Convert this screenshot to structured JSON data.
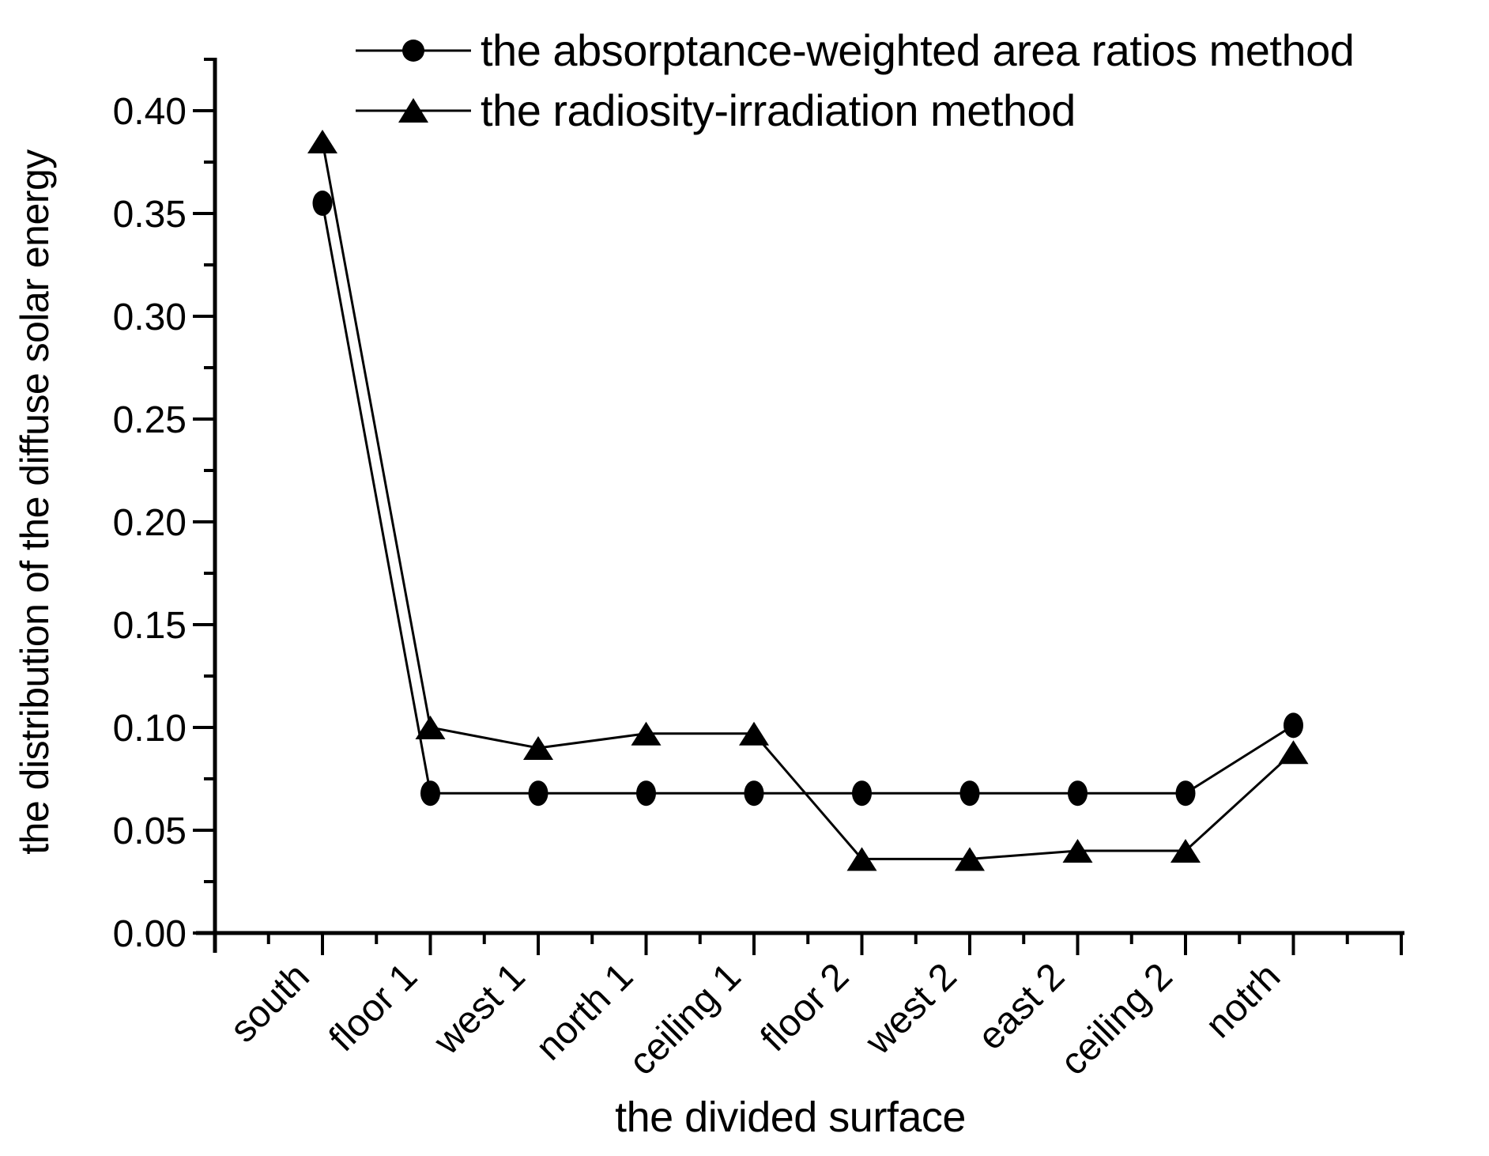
{
  "page": {
    "background": "#ffffff"
  },
  "legend": {
    "items": [
      {
        "marker": "circle",
        "label": "the absorptance-weighted area ratios method"
      },
      {
        "marker": "triangle",
        "label": "the radiosity-irradiation method"
      }
    ]
  },
  "chart_data": {
    "type": "line",
    "title": "",
    "xlabel": "the divided surface",
    "ylabel": "the distribution of the diffuse solar energy",
    "categories": [
      "south",
      "floor 1",
      "west 1",
      "north 1",
      "ceiling 1",
      "floor 2",
      "west 2",
      "east 2",
      "ceiling 2",
      "notrh"
    ],
    "series": [
      {
        "name": "the absorptance-weighted area ratios method",
        "marker": "circle",
        "values": [
          0.355,
          0.068,
          0.068,
          0.068,
          0.068,
          0.068,
          0.068,
          0.068,
          0.068,
          0.101
        ]
      },
      {
        "name": "the radiosity-irradiation method",
        "marker": "triangle",
        "values": [
          0.385,
          0.1,
          0.09,
          0.097,
          0.097,
          0.036,
          0.036,
          0.04,
          0.04,
          0.088
        ]
      }
    ],
    "y_axis": {
      "min": 0.0,
      "max": 0.425,
      "major_step": 0.05,
      "minor_step": 0.025,
      "tick_labels": [
        "0.00",
        "0.05",
        "0.10",
        "0.15",
        "0.20",
        "0.25",
        "0.30",
        "0.35",
        "0.40"
      ]
    },
    "x_axis": {
      "minor_ticks_between_categories": true
    },
    "legend_position": "top",
    "grid": false,
    "colors": {
      "line": "#000000",
      "text": "#000000",
      "background": "#ffffff"
    }
  }
}
